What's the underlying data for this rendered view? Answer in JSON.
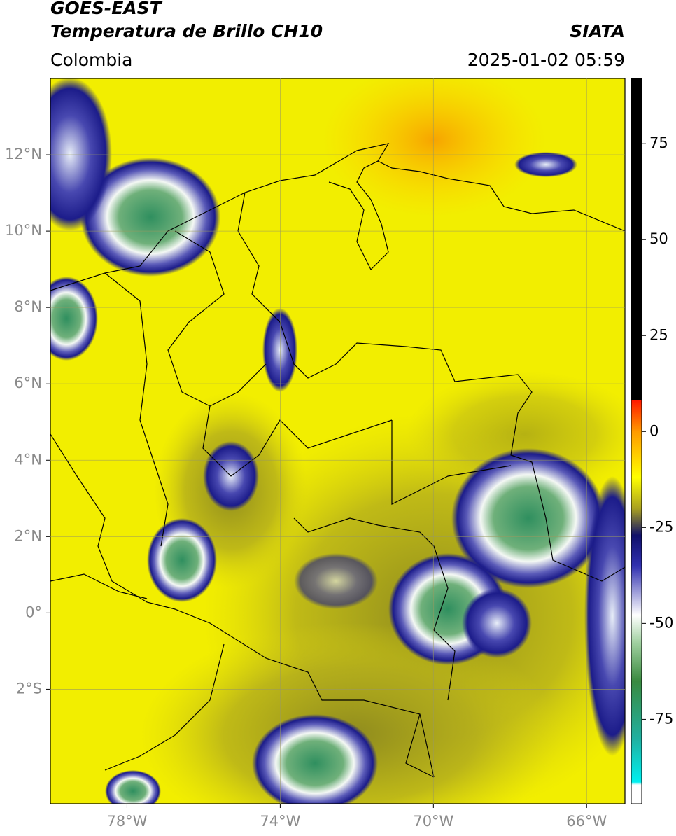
{
  "header": {
    "title": "GOES-EAST",
    "subtitle": "Temperatura de Brillo CH10",
    "region": "Colombia",
    "source": "SIATA",
    "datetime": "2025-01-02 05:59"
  },
  "map": {
    "xlim": [
      -80,
      -65
    ],
    "ylim": [
      -5,
      14
    ],
    "xticks": [
      {
        "value": -78,
        "label": "78°W"
      },
      {
        "value": -74,
        "label": "74°W"
      },
      {
        "value": -70,
        "label": "70°W"
      },
      {
        "value": -66,
        "label": "66°W"
      }
    ],
    "yticks": [
      {
        "value": 12,
        "label": "12°N"
      },
      {
        "value": 10,
        "label": "10°N"
      },
      {
        "value": 8,
        "label": "8°N"
      },
      {
        "value": 6,
        "label": "6°N"
      },
      {
        "value": 4,
        "label": "4°N"
      },
      {
        "value": 2,
        "label": "2°N"
      },
      {
        "value": 0,
        "label": "0°"
      },
      {
        "value": -2,
        "label": "2°S"
      }
    ],
    "grid": true
  },
  "colorbar": {
    "clim": [
      -97,
      92
    ],
    "ticks": [
      75,
      50,
      25,
      0,
      -25,
      -50,
      -75
    ]
  }
}
